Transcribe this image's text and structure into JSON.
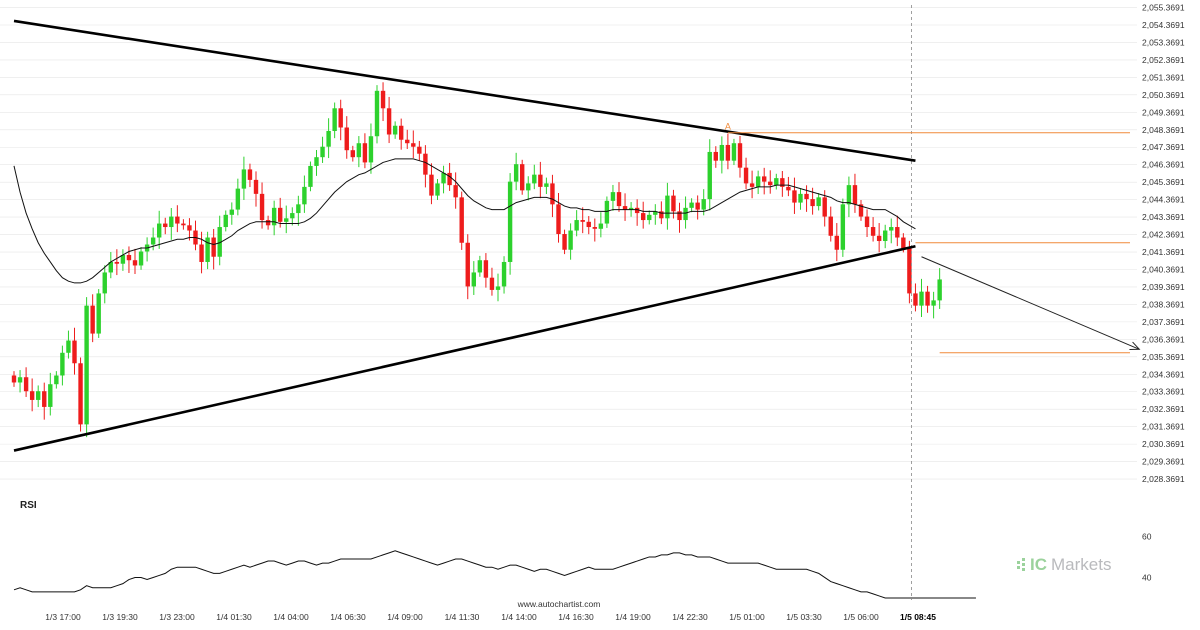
{
  "chart_data": {
    "type": "candlestick",
    "instrument_note": "",
    "price_axis": {
      "ticks": [
        "2,055.3691",
        "2,054.3691",
        "2,053.3691",
        "2,052.3691",
        "2,051.3691",
        "2,050.3691",
        "2,049.3691",
        "2,048.3691",
        "2,047.3691",
        "2,046.3691",
        "2,045.3691",
        "2,044.3691",
        "2,043.3691",
        "2,042.3691",
        "2,041.3691",
        "2,040.3691",
        "2,039.3691",
        "2,038.3691",
        "2,037.3691",
        "2,036.3691",
        "2,035.3691",
        "2,034.3691",
        "2,033.3691",
        "2,032.3691",
        "2,031.3691",
        "2,030.3691",
        "2,029.3691",
        "2,028.3691"
      ],
      "range": [
        2027.8,
        2055.4
      ]
    },
    "time_axis": {
      "ticks": [
        "1/3 17:00",
        "1/3 19:30",
        "1/3 23:00",
        "1/4 01:30",
        "1/4 04:00",
        "1/4 06:30",
        "1/4 09:00",
        "1/4 11:30",
        "1/4 14:00",
        "1/4 16:30",
        "1/4 19:00",
        "1/4 22:30",
        "1/5 01:00",
        "1/5 03:30",
        "1/5 06:00",
        "1/5 08:45"
      ],
      "highlight": "1/5 08:45"
    },
    "closes": [
      2033.9,
      2034.2,
      2033.4,
      2032.9,
      2033.4,
      2032.5,
      2033.8,
      2034.3,
      2035.6,
      2036.3,
      2035.0,
      2031.5,
      2038.3,
      2036.7,
      2039.0,
      2040.2,
      2040.8,
      2040.7,
      2041.2,
      2040.9,
      2040.6,
      2041.4,
      2041.8,
      2042.2,
      2043.0,
      2042.8,
      2043.4,
      2043.0,
      2042.9,
      2042.6,
      2041.8,
      2040.8,
      2042.2,
      2041.1,
      2042.8,
      2043.5,
      2043.8,
      2045.0,
      2046.1,
      2045.5,
      2044.7,
      2043.2,
      2042.9,
      2043.9,
      2043.1,
      2043.3,
      2043.6,
      2044.1,
      2045.1,
      2046.3,
      2046.8,
      2047.4,
      2048.3,
      2049.6,
      2048.5,
      2047.2,
      2046.8,
      2047.6,
      2046.5,
      2048.0,
      2050.6,
      2049.6,
      2048.1,
      2048.6,
      2047.8,
      2047.6,
      2047.4,
      2047.0,
      2045.8,
      2044.6,
      2045.3,
      2045.9,
      2045.2,
      2044.5,
      2041.9,
      2039.4,
      2040.2,
      2040.9,
      2039.9,
      2039.2,
      2039.4,
      2040.8,
      2045.4,
      2046.4,
      2044.9,
      2045.3,
      2045.8,
      2045.1,
      2045.3,
      2044.1,
      2042.4,
      2041.5,
      2042.6,
      2043.2,
      2043.1,
      2042.8,
      2042.7,
      2043.0,
      2044.3,
      2044.8,
      2044.0,
      2043.8,
      2043.9,
      2043.6,
      2043.2,
      2043.5,
      2043.7,
      2043.3,
      2044.6,
      2043.7,
      2043.2,
      2043.9,
      2044.2,
      2043.8,
      2044.4,
      2047.1,
      2046.6,
      2047.5,
      2046.6,
      2047.6,
      2046.2,
      2045.3,
      2045.1,
      2045.7,
      2045.4,
      2045.2,
      2045.6,
      2045.1,
      2044.9,
      2044.2,
      2044.7,
      2044.4,
      2044.0,
      2044.5,
      2043.4,
      2042.3,
      2041.5,
      2044.1,
      2045.2,
      2044.1,
      2043.4,
      2042.8,
      2042.3,
      2042.0,
      2042.6,
      2042.8,
      2042.2,
      2041.6,
      2039.0,
      2038.3,
      2039.1,
      2038.3,
      2038.6,
      2039.8
    ],
    "opens_note": "",
    "sma_line": [
      2046.3,
      2044.8,
      2043.6,
      2042.7,
      2041.9,
      2041.3,
      2040.8,
      2040.3,
      2039.9,
      2039.7,
      2039.6,
      2039.6,
      2039.7,
      2039.9,
      2040.2,
      2040.5,
      2040.8,
      2041.0,
      2041.2,
      2041.4,
      2041.5,
      2041.6,
      2041.6,
      2041.7,
      2041.8,
      2041.9,
      2042.0,
      2042.1,
      2042.1,
      2042.2,
      2042.2,
      2042.1,
      2041.9,
      2041.8,
      2041.9,
      2042.1,
      2042.3,
      2042.6,
      2042.8,
      2043.0,
      2043.1,
      2043.1,
      2043.1,
      2043.1,
      2043.0,
      2043.0,
      2043.0,
      2043.0,
      2043.1,
      2043.3,
      2043.6,
      2044.0,
      2044.4,
      2044.8,
      2045.1,
      2045.4,
      2045.6,
      2045.8,
      2045.9,
      2046.1,
      2046.3,
      2046.5,
      2046.6,
      2046.7,
      2046.7,
      2046.7,
      2046.7,
      2046.6,
      2046.5,
      2046.3,
      2046.1,
      2045.9,
      2045.7,
      2045.4,
      2045.0,
      2044.6,
      2044.3,
      2044.1,
      2043.9,
      2043.8,
      2043.8,
      2043.8,
      2044.0,
      2044.2,
      2044.3,
      2044.4,
      2044.5,
      2044.5,
      2044.5,
      2044.4,
      2044.2,
      2044.0,
      2043.9,
      2043.9,
      2043.8,
      2043.8,
      2043.7,
      2043.7,
      2043.7,
      2043.8,
      2043.8,
      2043.8,
      2043.8,
      2043.8,
      2043.7,
      2043.7,
      2043.7,
      2043.6,
      2043.6,
      2043.6,
      2043.6,
      2043.6,
      2043.7,
      2043.7,
      2043.7,
      2043.8,
      2044.0,
      2044.2,
      2044.4,
      2044.6,
      2044.8,
      2044.9,
      2045.0,
      2045.1,
      2045.1,
      2045.1,
      2045.2,
      2045.2,
      2045.2,
      2045.1,
      2045.0,
      2044.9,
      2044.8,
      2044.7,
      2044.6,
      2044.5,
      2044.3,
      2044.2,
      2044.2,
      2044.1,
      2044.0,
      2043.9,
      2043.8,
      2043.8,
      2043.8,
      2043.6,
      2043.4,
      2043.1,
      2042.9,
      2042.7
    ],
    "trendlines": [
      {
        "name": "resistance",
        "from": [
          0,
          2054.6
        ],
        "to": [
          149,
          2046.6
        ]
      },
      {
        "name": "support",
        "from": [
          0,
          2030.0
        ],
        "to": [
          149,
          2041.7
        ]
      }
    ],
    "horizontal_levels": [
      2048.2,
      2041.9,
      2035.6
    ],
    "forecast_arrow": {
      "from": [
        150,
        2041.1
      ],
      "to": [
        186,
        2035.8
      ]
    },
    "marker_label": "A",
    "rsi": {
      "label": "RSI",
      "ticks": [
        "60",
        "40"
      ],
      "range": [
        30,
        68
      ],
      "values": [
        34,
        35,
        34,
        33,
        33,
        33,
        33,
        33,
        33,
        33,
        33,
        34,
        36,
        35,
        35,
        35,
        35,
        36,
        37,
        39,
        40,
        40,
        39,
        40,
        41,
        42,
        44,
        45,
        45,
        45,
        45,
        44,
        43,
        42,
        42,
        43,
        44,
        45,
        46,
        45,
        46,
        47,
        48,
        48,
        47,
        46,
        47,
        48,
        48,
        47,
        46,
        47,
        47,
        48,
        49,
        49,
        49,
        49,
        49,
        49,
        50,
        51,
        52,
        53,
        52,
        51,
        50,
        49,
        48,
        47,
        46,
        47,
        48,
        49,
        49,
        48,
        47,
        46,
        45,
        45,
        44,
        45,
        46,
        46,
        45,
        44,
        43,
        44,
        44,
        43,
        42,
        41,
        42,
        43,
        44,
        45,
        44,
        44,
        44,
        44,
        45,
        46,
        47,
        48,
        49,
        50,
        50,
        51,
        51,
        52,
        52,
        51,
        51,
        50,
        50,
        50,
        49,
        48,
        47,
        47,
        47,
        47,
        47,
        47,
        46,
        45,
        44,
        44,
        44,
        44,
        44,
        44,
        43,
        42,
        40,
        38,
        37,
        36,
        35,
        34,
        33,
        33,
        32,
        31,
        30,
        30,
        30,
        30,
        30,
        30,
        30,
        30,
        30,
        30,
        30,
        30,
        30,
        30,
        30,
        30
      ]
    },
    "watermark": "www.autochartist.com",
    "brand": {
      "prefix": "IC",
      "suffix": "Markets"
    },
    "colors": {
      "up": "#2dd12d",
      "down": "#ee1c1c",
      "trend": "#000000",
      "level": "#f08a3a",
      "sma": "#111111",
      "grid": "#e6e6e6",
      "vline": "#888888"
    }
  }
}
